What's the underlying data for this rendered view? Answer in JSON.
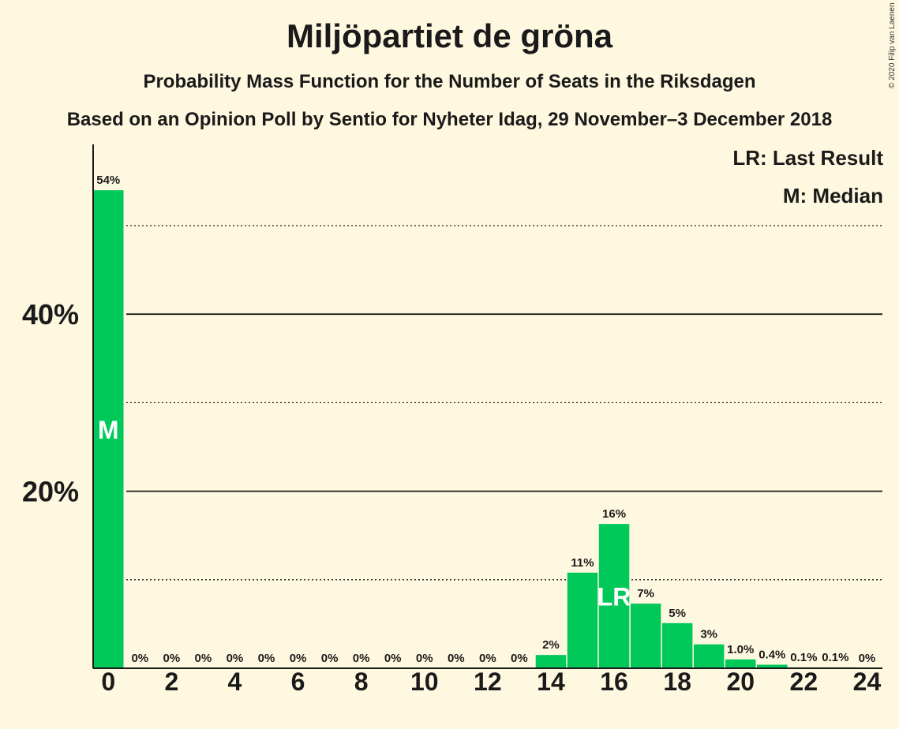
{
  "header": {
    "title": "Miljöpartiet de gröna",
    "subtitle": "Probability Mass Function for the Number of Seats in the Riksdagen",
    "subtitle2": "Based on an Opinion Poll by Sentio for Nyheter Idag, 29 November–3 December 2018",
    "copyright": "© 2020 Filip van Laenen"
  },
  "legend": {
    "last_result": "LR: Last Result",
    "median": "M: Median"
  },
  "colors": {
    "bar": "#00c95a",
    "background": "#fff8e0"
  },
  "chart_data": {
    "type": "bar",
    "x": [
      0,
      1,
      2,
      3,
      4,
      5,
      6,
      7,
      8,
      9,
      10,
      11,
      12,
      13,
      14,
      15,
      16,
      17,
      18,
      19,
      20,
      21,
      22,
      23,
      24
    ],
    "values": [
      54,
      0,
      0,
      0,
      0,
      0,
      0,
      0,
      0,
      0,
      0,
      0,
      0,
      0,
      1.5,
      10.8,
      16.3,
      7.3,
      5.1,
      2.7,
      1.0,
      0.4,
      0.1,
      0.1,
      0
    ],
    "value_labels": [
      "54%",
      "0%",
      "0%",
      "0%",
      "0%",
      "0%",
      "0%",
      "0%",
      "0%",
      "0%",
      "0%",
      "0%",
      "0%",
      "0%",
      "2%",
      "11%",
      "16%",
      "7%",
      "5%",
      "3%",
      "1.0%",
      "0.4%",
      "0.1%",
      "0.1%",
      "0%"
    ],
    "xticks": [
      "0",
      "2",
      "4",
      "6",
      "8",
      "10",
      "12",
      "14",
      "16",
      "18",
      "20",
      "22",
      "24"
    ],
    "yticks": [
      "20%",
      "40%"
    ],
    "ylim": [
      0,
      59
    ],
    "gridlines_solid": [
      20,
      40
    ],
    "gridlines_dotted": [
      10,
      30,
      50
    ],
    "median_seat": 0,
    "median_label": "M",
    "last_result_seat": 16,
    "last_result_label": "LR"
  }
}
